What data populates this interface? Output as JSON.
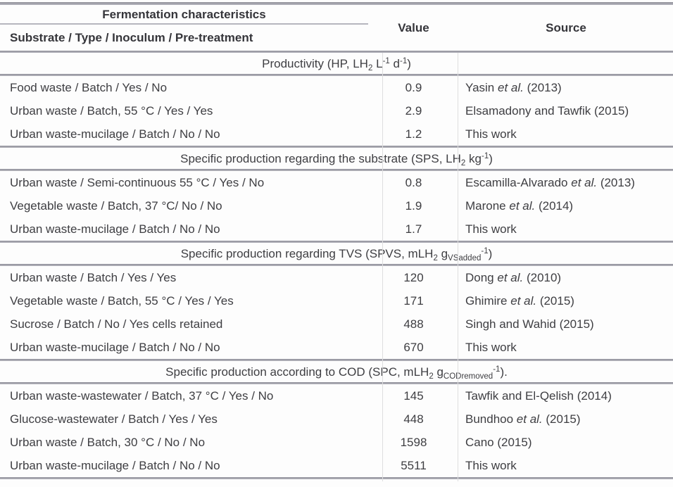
{
  "table": {
    "header": {
      "col1_top": "Fermentation characteristics",
      "col1_bottom": "Substrate / Type / Inoculum / Pre-treatment",
      "col2": "Value",
      "col3": "Source"
    },
    "sections": [
      {
        "title_parts": [
          {
            "t": "Productivity (HP, LH"
          },
          {
            "t": "2",
            "s": "sub"
          },
          {
            "t": " L"
          },
          {
            "t": "-1",
            "s": "sup"
          },
          {
            "t": " d"
          },
          {
            "t": "-1",
            "s": "sup"
          },
          {
            "t": ")"
          }
        ],
        "rows": [
          {
            "substrate": "Food waste / Batch / Yes / No",
            "value": "0.9",
            "source_parts": [
              {
                "t": "Yasin "
              },
              {
                "t": "et al.",
                "s": "i"
              },
              {
                "t": " (2013)"
              }
            ]
          },
          {
            "substrate": "Urban waste / Batch, 55 °C / Yes / Yes",
            "value": "2.9",
            "source_parts": [
              {
                "t": "Elsamadony and Tawfik (2015)"
              }
            ]
          },
          {
            "substrate": "Urban waste-mucilage / Batch / No / No",
            "value": "1.2",
            "source_parts": [
              {
                "t": "This work"
              }
            ]
          }
        ]
      },
      {
        "title_parts": [
          {
            "t": "Specific production regarding the substrate (SPS, LH"
          },
          {
            "t": "2",
            "s": "sub"
          },
          {
            "t": " kg"
          },
          {
            "t": "-1",
            "s": "sup"
          },
          {
            "t": ")"
          }
        ],
        "rows": [
          {
            "substrate": "Urban waste / Semi-continuous 55 °C / Yes / No",
            "value": "0.8",
            "source_parts": [
              {
                "t": "Escamilla-Alvarado "
              },
              {
                "t": "et al.",
                "s": "i"
              },
              {
                "t": " (2013)"
              }
            ]
          },
          {
            "substrate": "Vegetable waste / Batch, 37 °C/ No / No",
            "value": "1.9",
            "source_parts": [
              {
                "t": "Marone "
              },
              {
                "t": "et al.",
                "s": "i"
              },
              {
                "t": " (2014)"
              }
            ]
          },
          {
            "substrate": "Urban waste-mucilage / Batch / No / No",
            "value": "1.7",
            "source_parts": [
              {
                "t": "This work"
              }
            ]
          }
        ]
      },
      {
        "title_parts": [
          {
            "t": "Specific production regarding TVS (SPVS, mLH"
          },
          {
            "t": "2",
            "s": "sub"
          },
          {
            "t": " g"
          },
          {
            "t": "VSadded",
            "s": "sub"
          },
          {
            "t": "-1",
            "s": "sup"
          },
          {
            "t": ")"
          }
        ],
        "rows": [
          {
            "substrate": "Urban waste / Batch / Yes / Yes",
            "value": "120",
            "source_parts": [
              {
                "t": "Dong "
              },
              {
                "t": "et al.",
                "s": "i"
              },
              {
                "t": " (2010)"
              }
            ]
          },
          {
            "substrate": "Vegetable waste / Batch, 55 °C / Yes / Yes",
            "value": "171",
            "source_parts": [
              {
                "t": "Ghimire "
              },
              {
                "t": "et al.",
                "s": "i"
              },
              {
                "t": " (2015)"
              }
            ]
          },
          {
            "substrate": "Sucrose / Batch / No / Yes cells retained",
            "value": "488",
            "source_parts": [
              {
                "t": "Singh and Wahid (2015)"
              }
            ]
          },
          {
            "substrate": "Urban waste-mucilage / Batch / No / No",
            "value": "670",
            "source_parts": [
              {
                "t": "This work"
              }
            ]
          }
        ]
      },
      {
        "title_parts": [
          {
            "t": "Specific production according to COD (SPC, mLH"
          },
          {
            "t": "2",
            "s": "sub"
          },
          {
            "t": " g"
          },
          {
            "t": "CODremoved",
            "s": "sub"
          },
          {
            "t": "-1",
            "s": "sup"
          },
          {
            "t": ")."
          }
        ],
        "rows": [
          {
            "substrate": "Urban waste-wastewater / Batch, 37 °C / Yes / No",
            "value": "145",
            "source_parts": [
              {
                "t": "Tawfik and El-Qelish (2014)"
              }
            ]
          },
          {
            "substrate": "Glucose-wastewater / Batch / Yes / Yes",
            "value": "448",
            "source_parts": [
              {
                "t": "Bundhoo "
              },
              {
                "t": "et al.",
                "s": "i"
              },
              {
                "t": " (2015)"
              }
            ]
          },
          {
            "substrate": "Urban waste / Batch, 30 °C / No / No",
            "value": "1598",
            "source_parts": [
              {
                "t": "Cano (2015)"
              }
            ]
          },
          {
            "substrate": "Urban waste-mucilage / Batch / No / No",
            "value": "5511",
            "source_parts": [
              {
                "t": "This work"
              }
            ]
          }
        ]
      }
    ]
  },
  "colors": {
    "rule": "#a4a4ac",
    "text": "#3e3e42",
    "header_text": "#35353a",
    "background": "#fdfdfd"
  }
}
